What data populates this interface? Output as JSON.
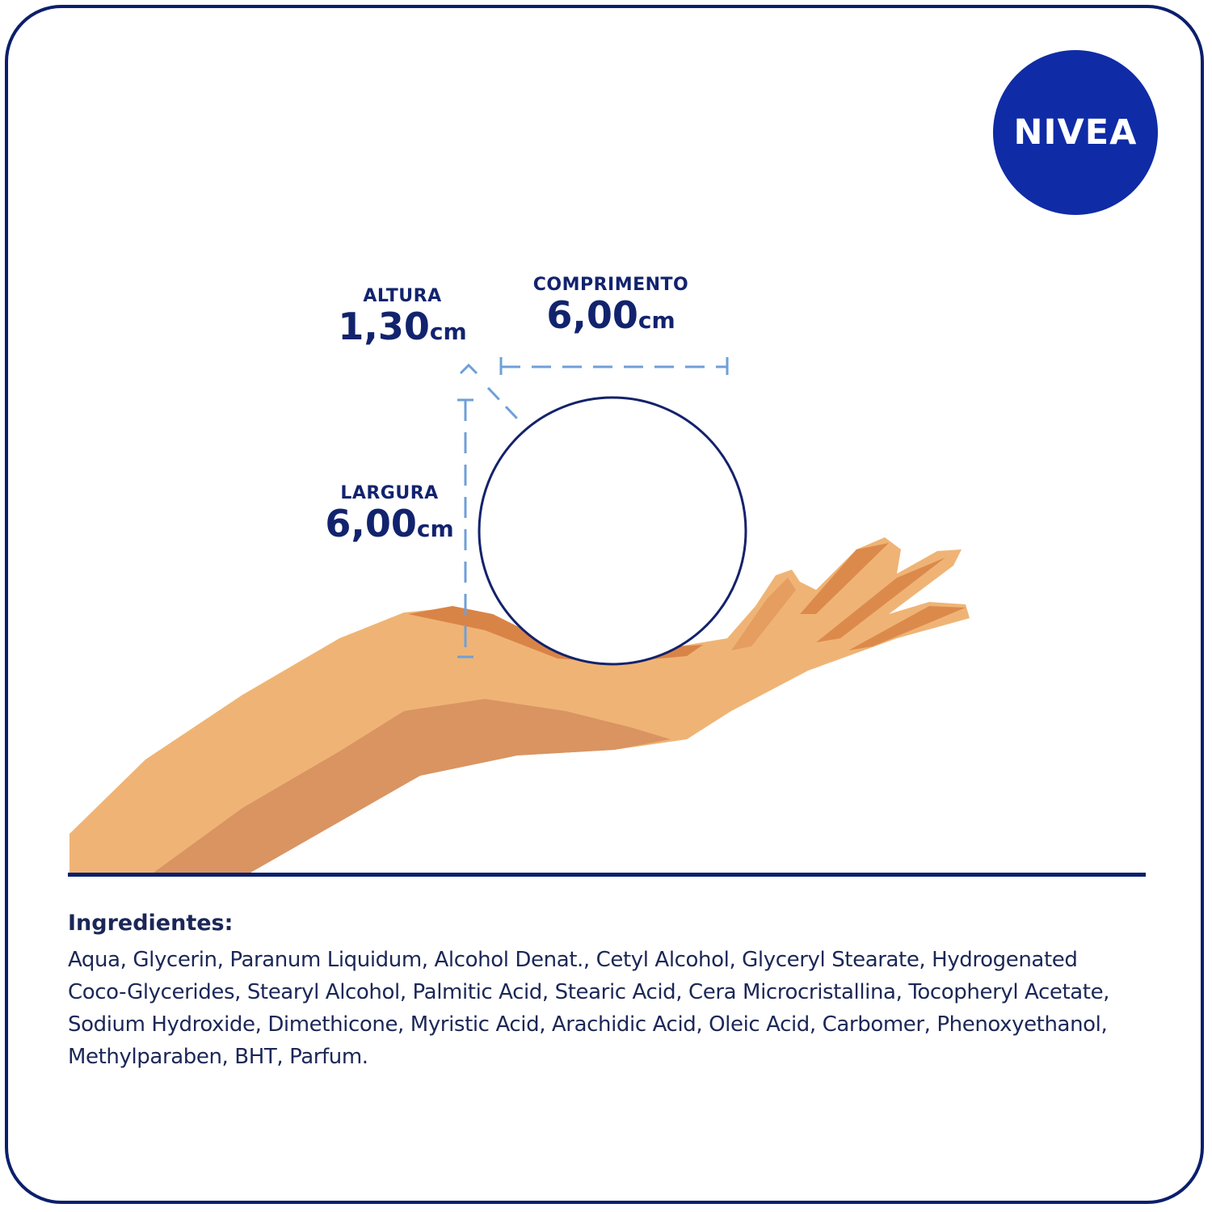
{
  "brand": {
    "logo_text": "NIVEA",
    "color": "#0f2ba6"
  },
  "dimensions": {
    "altura": {
      "label": "ALTURA",
      "value": "1,30",
      "unit": "cm"
    },
    "comprimento": {
      "label": "COMPRIMENTO",
      "value": "6,00",
      "unit": "cm"
    },
    "largura": {
      "label": "LARGURA",
      "value": "6,00",
      "unit": "cm"
    }
  },
  "colors": {
    "text_navy": "#12236e",
    "dash_blue": "#6f9fd8",
    "skin": "#efb475",
    "skin_shadow": "#d9905a"
  },
  "ingredients": {
    "title": "Ingredientes:",
    "text": "Aqua, Glycerin, Paranum Liquidum, Alcohol Denat., Cetyl Alcohol, Glyceryl Stearate, Hydrogenated Coco-Glycerides, Stearyl Alcohol, Palmitic Acid, Stearic Acid, Cera Microcristallina, Tocopheryl Acetate, Sodium Hydroxide, Dimethicone, Myristic Acid, Arachidic Acid, Oleic Acid, Carbomer, Phenoxyethanol, Methylparaben, BHT, Parfum."
  }
}
